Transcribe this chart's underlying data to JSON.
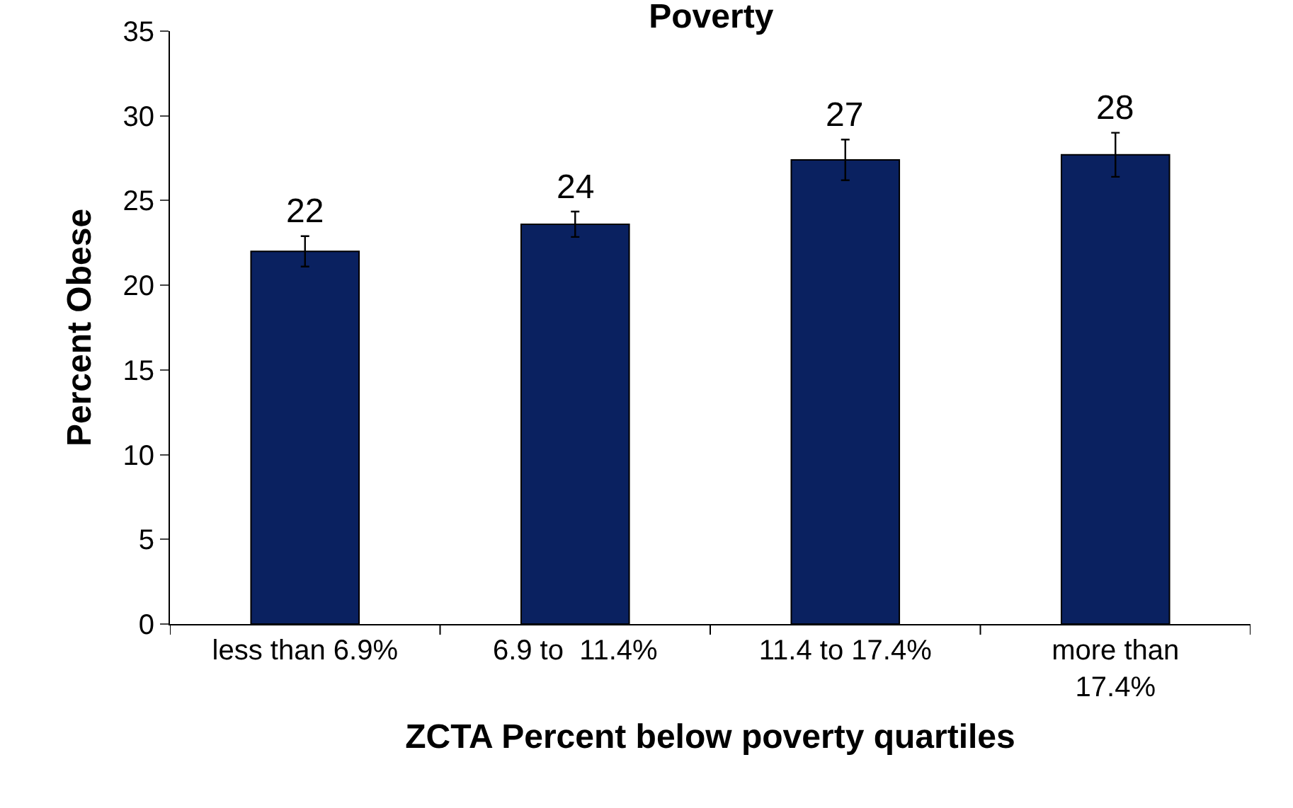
{
  "chart_data": {
    "type": "bar",
    "title": "Poverty",
    "xlabel": "ZCTA Percent below poverty quartiles",
    "ylabel": "Percent Obese",
    "categories": [
      "less than 6.9%",
      "6.9 to  11.4%",
      "11.4 to 17.4%",
      "more than 17.4%"
    ],
    "values": [
      22.0,
      23.6,
      27.4,
      27.7
    ],
    "errors": [
      0.9,
      0.75,
      1.2,
      1.3
    ],
    "value_labels": [
      "22",
      "24",
      "27",
      "28"
    ],
    "color": "#0a2160",
    "ylim": [
      0,
      35
    ],
    "yticks": [
      0,
      5,
      10,
      15,
      20,
      25,
      30,
      35
    ]
  }
}
